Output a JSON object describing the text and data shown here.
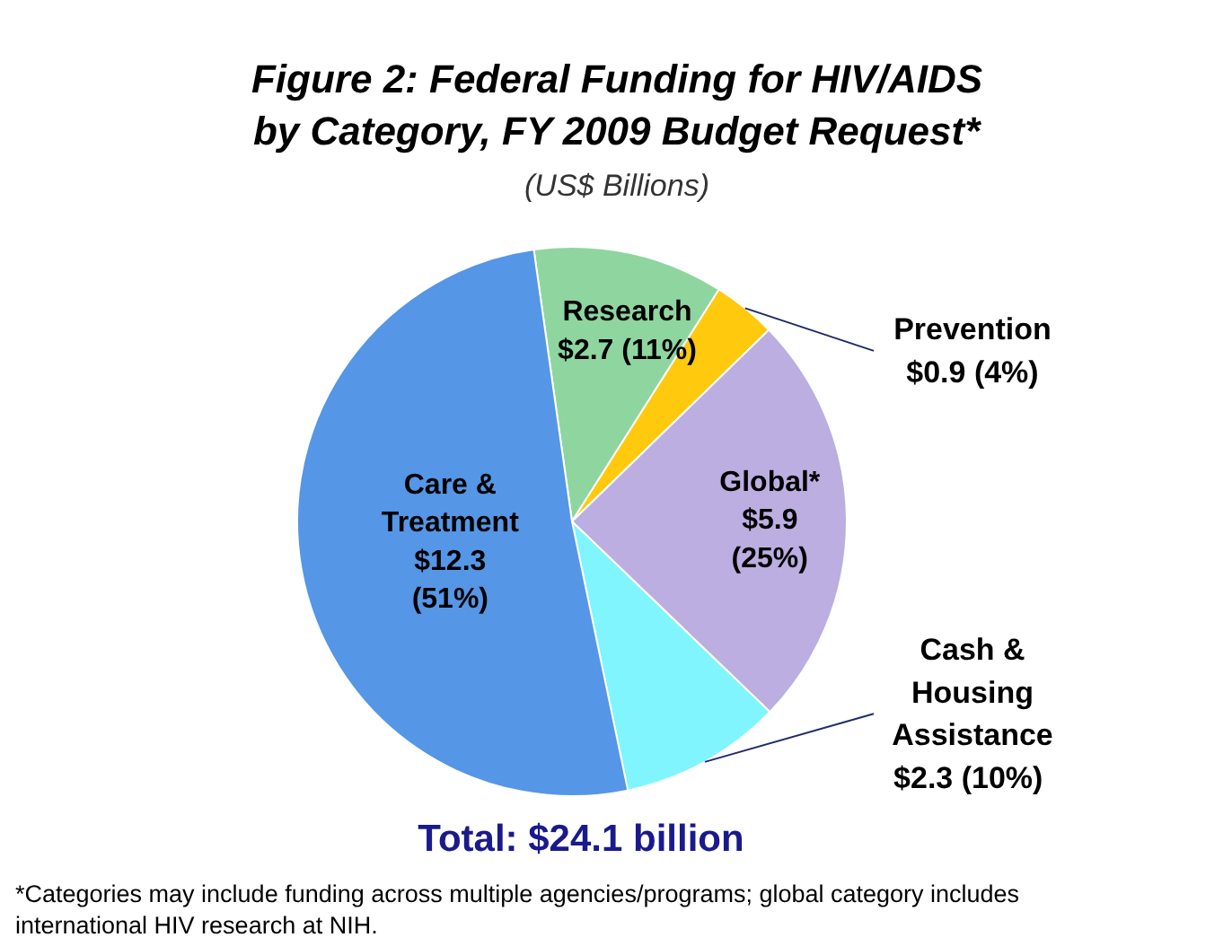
{
  "chart_data": {
    "type": "pie",
    "title": "Figure 2: Federal Funding for HIV/AIDS\nby Category, FY 2009 Budget Request*",
    "subtitle": "(US$ Billions)",
    "categories": [
      "Research",
      "Prevention",
      "Global*",
      "Cash &\nHousing\nAssistance",
      "Care &\nTreatment"
    ],
    "values": [
      2.7,
      0.9,
      5.9,
      2.3,
      12.3
    ],
    "value_labels": [
      "$2.7 (11%)",
      "$0.9 (4%)",
      "$5.9\n(25%)",
      "$2.3  (10%)",
      "$12.3\n(51%)"
    ],
    "colors": [
      "#8fd5a0",
      "#ffc90e",
      "#bcaee0",
      "#80f5fd",
      "#5596e6"
    ],
    "annotations": [
      "Total: $24.1 billion",
      "*Categories may include funding across multiple agencies/programs; global category includes international HIV research at NIH."
    ]
  }
}
